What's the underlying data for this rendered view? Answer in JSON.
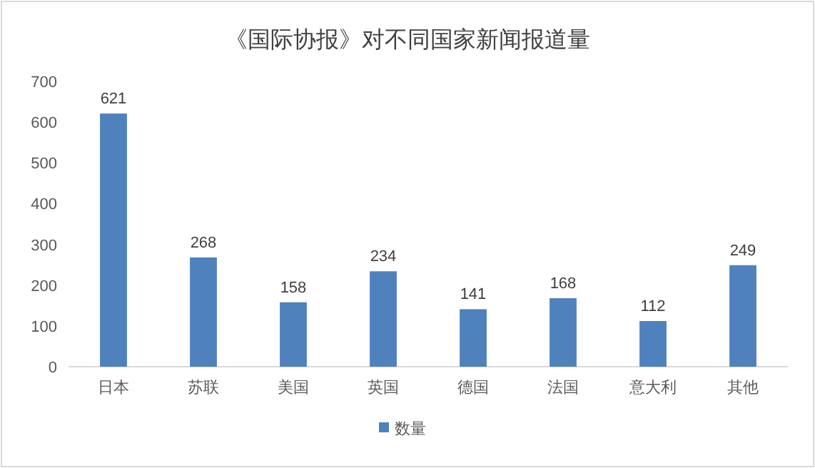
{
  "chart_data": {
    "type": "bar",
    "title": "《国际协报》对不同国家新闻报道量",
    "categories": [
      "日本",
      "苏联",
      "美国",
      "英国",
      "德国",
      "法国",
      "意大利",
      "其他"
    ],
    "series": [
      {
        "name": "数量",
        "color": "#4f81bd",
        "values": [
          621,
          268,
          158,
          234,
          141,
          168,
          112,
          249
        ]
      }
    ],
    "ylim": [
      0,
      700
    ],
    "yticks": [
      0,
      100,
      200,
      300,
      400,
      500,
      600,
      700
    ],
    "grid": false,
    "legend": "bottom",
    "data_labels": true
  }
}
